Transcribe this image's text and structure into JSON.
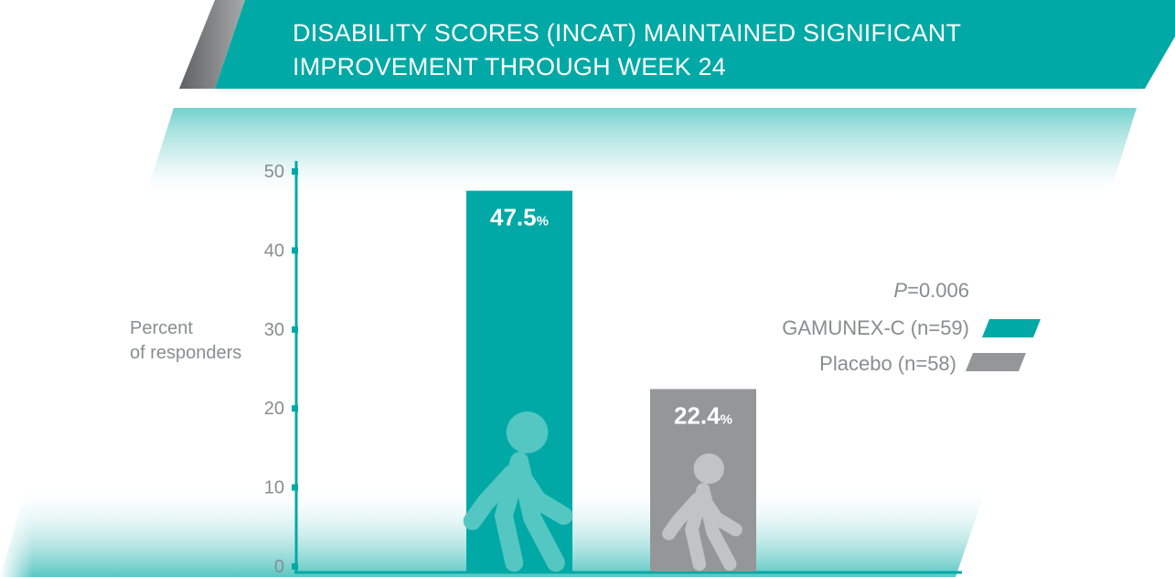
{
  "title_lines": [
    "DISABILITY SCORES (INCAT) MAINTAINED SIGNIFICANT",
    "IMPROVEMENT THROUGH WEEK 24"
  ],
  "colors": {
    "teal": "#00a9a6",
    "gray": "#949698",
    "dark_gray": "#6d6e70",
    "text_gray": "#8a8c8e",
    "walker_teal": "#54c7c3",
    "walker_gray": "#c2c3c4"
  },
  "icons": [
    "walking-person-icon",
    "walking-person-icon"
  ],
  "chart_data": {
    "type": "bar",
    "title": "DISABILITY SCORES (INCAT) MAINTAINED SIGNIFICANT IMPROVEMENT THROUGH WEEK 24",
    "ylabel_lines": [
      "Percent",
      "of responders"
    ],
    "ylim": [
      0,
      50
    ],
    "yticks": [
      0,
      10,
      20,
      30,
      40,
      50
    ],
    "grid": false,
    "legend_position": "right",
    "p_value": {
      "prefix": "P",
      "rest": "=0.006"
    },
    "series": [
      {
        "name": "GAMUNEX-C (n=59)",
        "value": 47.5,
        "label": "47.5",
        "unit": "%",
        "color": "#00a9a6"
      },
      {
        "name": "Placebo (n=58)",
        "value": 22.4,
        "label": "22.4",
        "unit": "%",
        "color": "#949698"
      }
    ]
  }
}
